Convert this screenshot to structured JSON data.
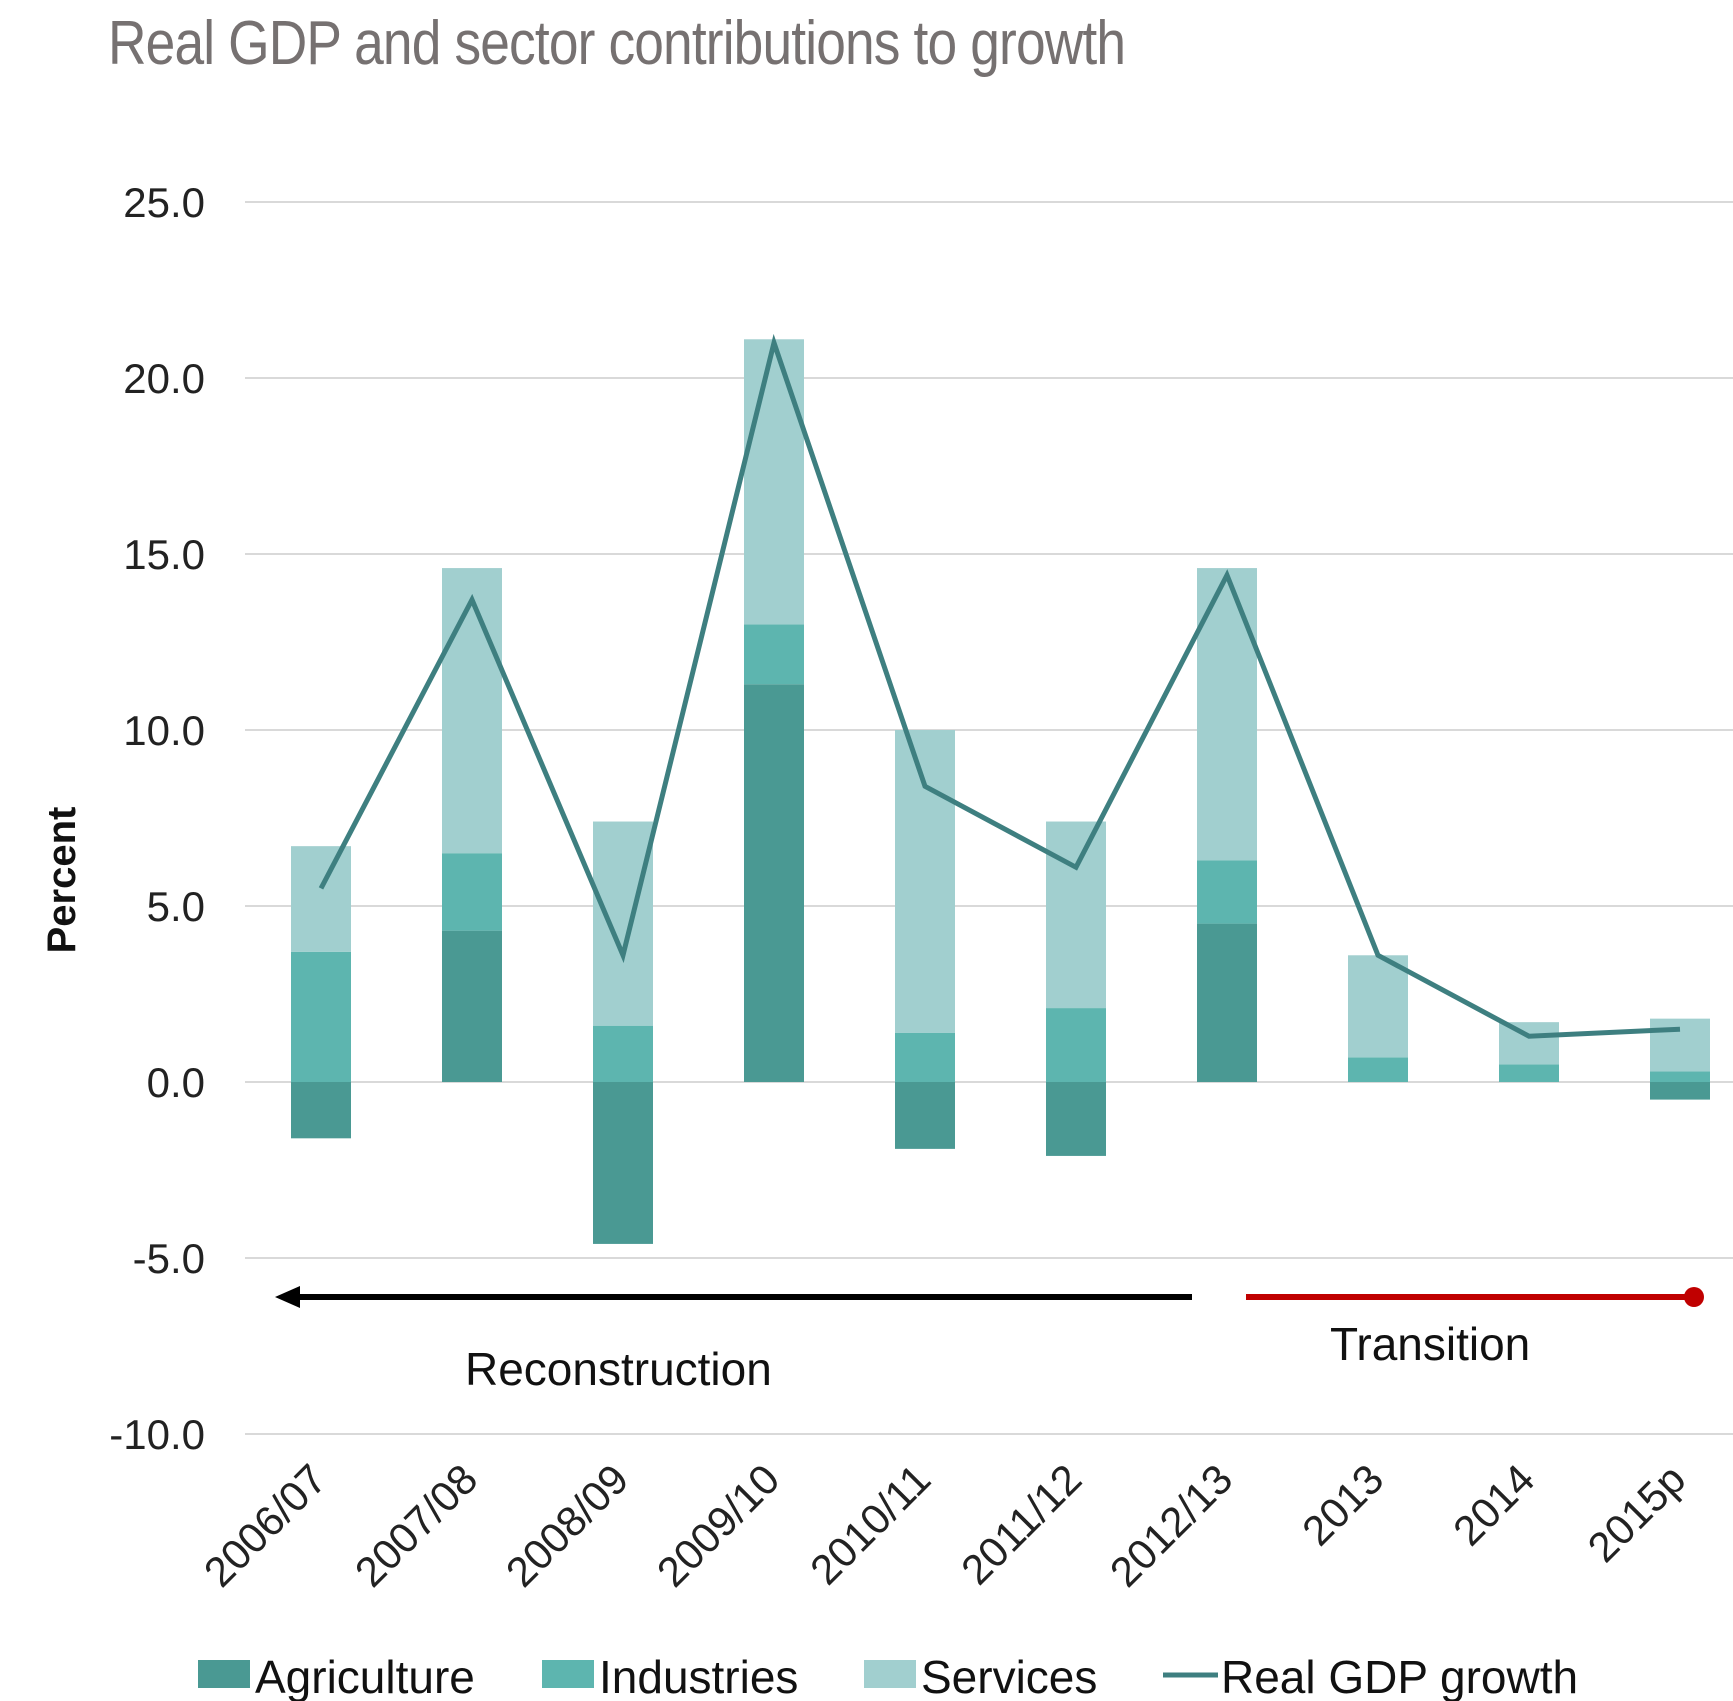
{
  "chart_data": {
    "type": "bar",
    "stacked": true,
    "title": "Real GDP and sector contributions to growth",
    "ylabel": "Percent",
    "xlabel": "",
    "ylim": [
      -10,
      25
    ],
    "yticks": [
      "25.0",
      "20.0",
      "15.0",
      "10.0",
      "5.0",
      "0.0",
      "-5.0",
      "-10.0"
    ],
    "ytick_values": [
      25,
      20,
      15,
      10,
      5,
      0,
      -5,
      -10
    ],
    "categories": [
      "2006/07",
      "2007/08",
      "2008/09",
      "2009/10",
      "2010/11",
      "2011/12",
      "2012/13",
      "2013",
      "2014",
      "2015p"
    ],
    "series": [
      {
        "name": "Agriculture",
        "color": "#4a9993",
        "values": [
          -1.6,
          4.3,
          -4.6,
          11.3,
          -1.9,
          -2.1,
          4.5,
          0.0,
          0.0,
          -0.5
        ]
      },
      {
        "name": "Industries",
        "color": "#5db5af",
        "values": [
          3.7,
          2.2,
          1.6,
          1.7,
          1.4,
          2.1,
          1.8,
          0.7,
          0.5,
          0.3
        ]
      },
      {
        "name": "Services",
        "color": "#a1cfcf",
        "values": [
          3.0,
          8.1,
          5.8,
          8.1,
          8.6,
          5.3,
          8.3,
          2.9,
          1.2,
          1.5
        ]
      }
    ],
    "line_series": {
      "name": "Real GDP growth",
      "color": "#3e7f80",
      "values": [
        5.5,
        13.7,
        3.6,
        21.0,
        8.4,
        6.1,
        14.4,
        3.6,
        1.3,
        1.5
      ]
    },
    "annotations": [
      {
        "text": "Reconstruction",
        "from": "2012/13",
        "to": "2006/07",
        "arrow_color": "#000000"
      },
      {
        "text": "Transition",
        "from": "2012/13",
        "to": "2015p",
        "arrow_color": "#c00000"
      }
    ],
    "legend_position": "bottom",
    "grid": true
  }
}
